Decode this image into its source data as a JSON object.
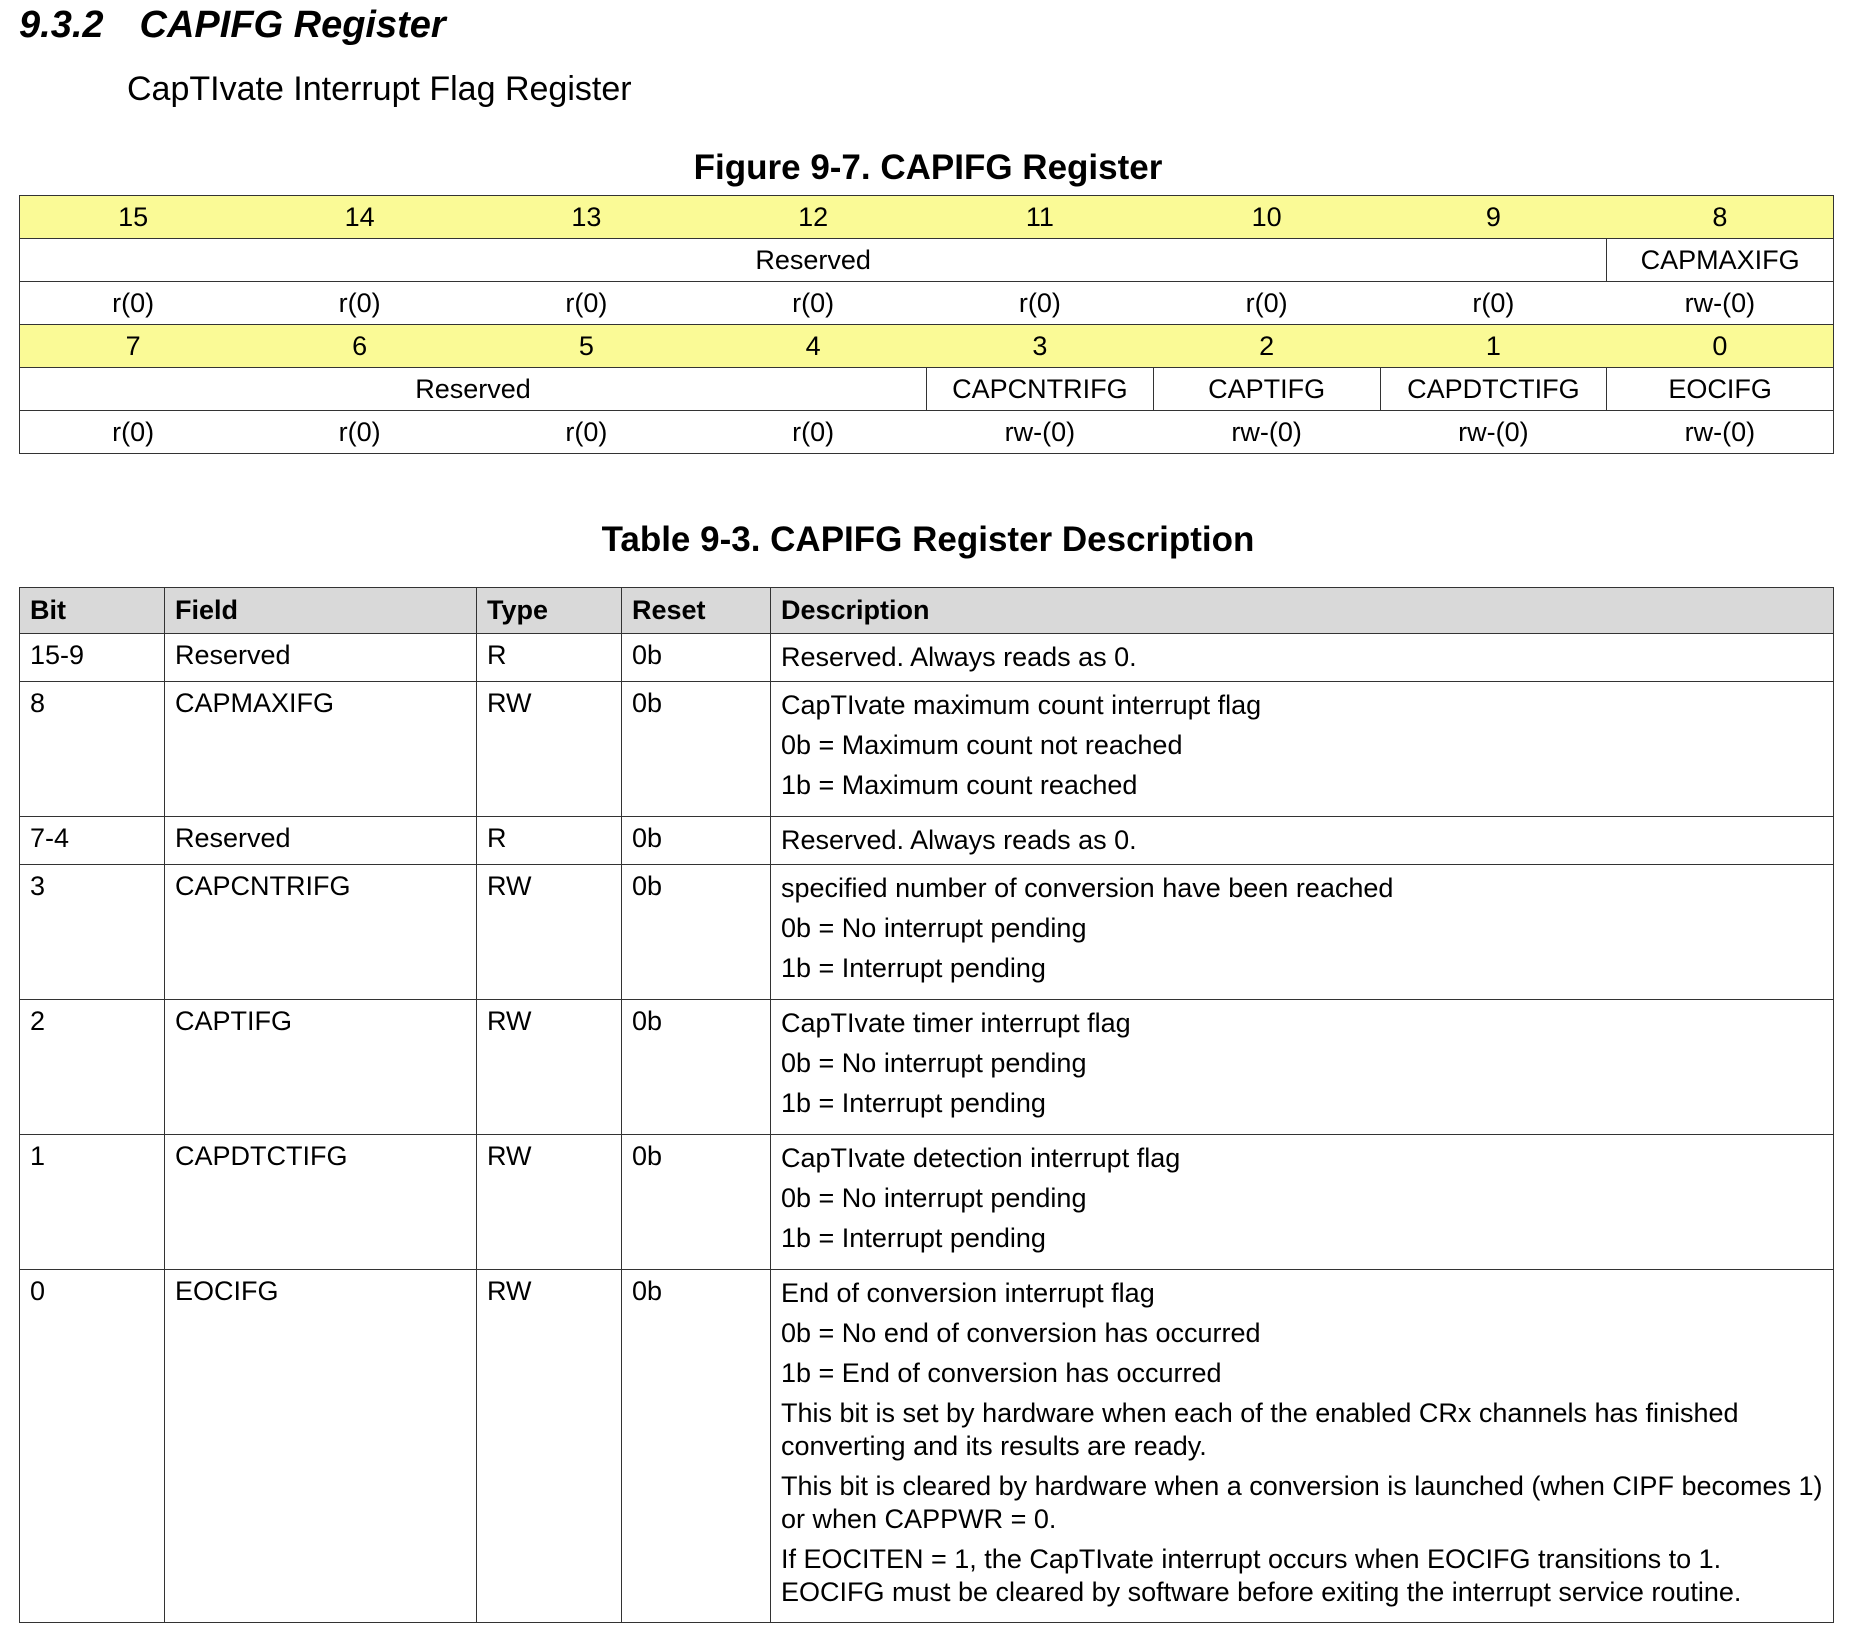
{
  "section": {
    "number": "9.3.2",
    "title": "CAPIFG Register"
  },
  "subtitle": "CapTIvate Interrupt Flag Register",
  "figure": {
    "title": "Figure 9-7. CAPIFG Register",
    "rows": [
      {
        "bits": [
          "15",
          "14",
          "13",
          "12",
          "11",
          "10",
          "9",
          "8"
        ],
        "fields": [
          "Reserved",
          "CAPMAXIFG"
        ],
        "access": [
          "r(0)",
          "r(0)",
          "r(0)",
          "r(0)",
          "r(0)",
          "r(0)",
          "r(0)",
          "rw-(0)"
        ]
      },
      {
        "bits": [
          "7",
          "6",
          "5",
          "4",
          "3",
          "2",
          "1",
          "0"
        ],
        "fields": [
          "Reserved",
          "CAPCNTRIFG",
          "CAPTIFG",
          "CAPDTCTIFG",
          "EOCIFG"
        ],
        "access": [
          "r(0)",
          "r(0)",
          "r(0)",
          "r(0)",
          "rw-(0)",
          "rw-(0)",
          "rw-(0)",
          "rw-(0)"
        ]
      }
    ]
  },
  "table": {
    "title": "Table 9-3. CAPIFG Register Description",
    "header": [
      "Bit",
      "Field",
      "Type",
      "Reset",
      "Description"
    ],
    "rows": [
      [
        "15-9",
        "Reserved",
        "R",
        "0b",
        [
          "Reserved. Always reads as 0."
        ]
      ],
      [
        "8",
        "CAPMAXIFG",
        "RW",
        "0b",
        [
          "CapTIvate maximum count interrupt flag",
          "0b = Maximum count not reached",
          "1b = Maximum count reached"
        ]
      ],
      [
        "7-4",
        "Reserved",
        "R",
        "0b",
        [
          "Reserved. Always reads as 0."
        ]
      ],
      [
        "3",
        "CAPCNTRIFG",
        "RW",
        "0b",
        [
          "specified number of conversion have been reached",
          "0b = No interrupt pending",
          "1b = Interrupt pending"
        ]
      ],
      [
        "2",
        "CAPTIFG",
        "RW",
        "0b",
        [
          "CapTIvate timer interrupt flag",
          "0b = No interrupt pending",
          "1b = Interrupt pending"
        ]
      ],
      [
        "1",
        "CAPDTCTIFG",
        "RW",
        "0b",
        [
          "CapTIvate detection interrupt flag",
          "0b = No interrupt pending",
          "1b = Interrupt pending"
        ]
      ],
      [
        "0",
        "EOCIFG",
        "RW",
        "0b",
        [
          "End of conversion interrupt flag",
          "0b = No end of conversion has occurred",
          "1b = End of conversion has occurred",
          "This bit is set by hardware when each of the enabled CRx channels has finished converting and its results are ready.",
          "This bit is cleared by hardware when a conversion is launched (when CIPF becomes 1) or when CAPPWR = 0.",
          "If EOCITEN = 1, the CapTIvate interrupt occurs when EOCIFG transitions to 1. EOCIFG must be cleared by software before exiting the interrupt service routine."
        ]
      ]
    ]
  }
}
